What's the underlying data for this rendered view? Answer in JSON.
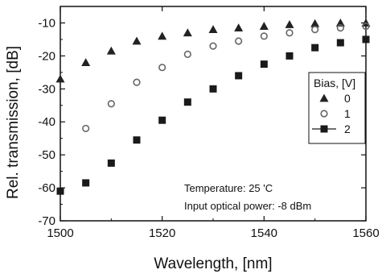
{
  "chart_data": {
    "type": "scatter",
    "xlabel": "Wavelength, [nm]",
    "ylabel": "Rel. transmission, [dB]",
    "xlim": [
      1500,
      1560
    ],
    "ylim": [
      -70,
      -5
    ],
    "x_ticks": [
      1500,
      1520,
      1540,
      1560
    ],
    "y_ticks": [
      -70,
      -60,
      -50,
      -40,
      -30,
      -20,
      -10
    ],
    "x_tick_labels": [
      "1500",
      "1520",
      "1540",
      "1560"
    ],
    "y_tick_labels": [
      "-70",
      "-60",
      "-50",
      "-40",
      "-30",
      "-20",
      "-10"
    ],
    "legend": {
      "title": "Bias, [V]",
      "placement": "right"
    },
    "series": [
      {
        "name": "0",
        "marker": "triangle",
        "color": "#222222",
        "x": [
          1500,
          1505,
          1510,
          1515,
          1520,
          1525,
          1530,
          1535,
          1540,
          1545,
          1550,
          1555,
          1560
        ],
        "y": [
          -27.0,
          -22.0,
          -18.5,
          -15.5,
          -14.0,
          -13.0,
          -12.0,
          -11.5,
          -11.0,
          -10.5,
          -10.2,
          -10.0,
          -10.0
        ]
      },
      {
        "name": "1",
        "marker": "open-circle",
        "color": "#666666",
        "x": [
          1505,
          1510,
          1515,
          1520,
          1525,
          1530,
          1535,
          1540,
          1545,
          1550,
          1555,
          1560
        ],
        "y": [
          -42.0,
          -34.5,
          -28.0,
          -23.5,
          -19.5,
          -17.0,
          -15.5,
          -14.0,
          -13.0,
          -12.0,
          -11.5,
          -11.0
        ]
      },
      {
        "name": "2",
        "marker": "square",
        "color": "#1a1a1a",
        "x": [
          1500,
          1505,
          1510,
          1515,
          1520,
          1525,
          1530,
          1535,
          1540,
          1545,
          1550,
          1555,
          1560
        ],
        "y": [
          -61.0,
          -58.5,
          -52.5,
          -45.5,
          -39.5,
          -34.0,
          -30.0,
          -26.0,
          -22.5,
          -20.0,
          -17.5,
          -16.0,
          -15.0
        ]
      }
    ],
    "annotations": [
      "Temperature: 25 'C",
      "Input optical power: -8 dBm"
    ],
    "grid": false
  }
}
